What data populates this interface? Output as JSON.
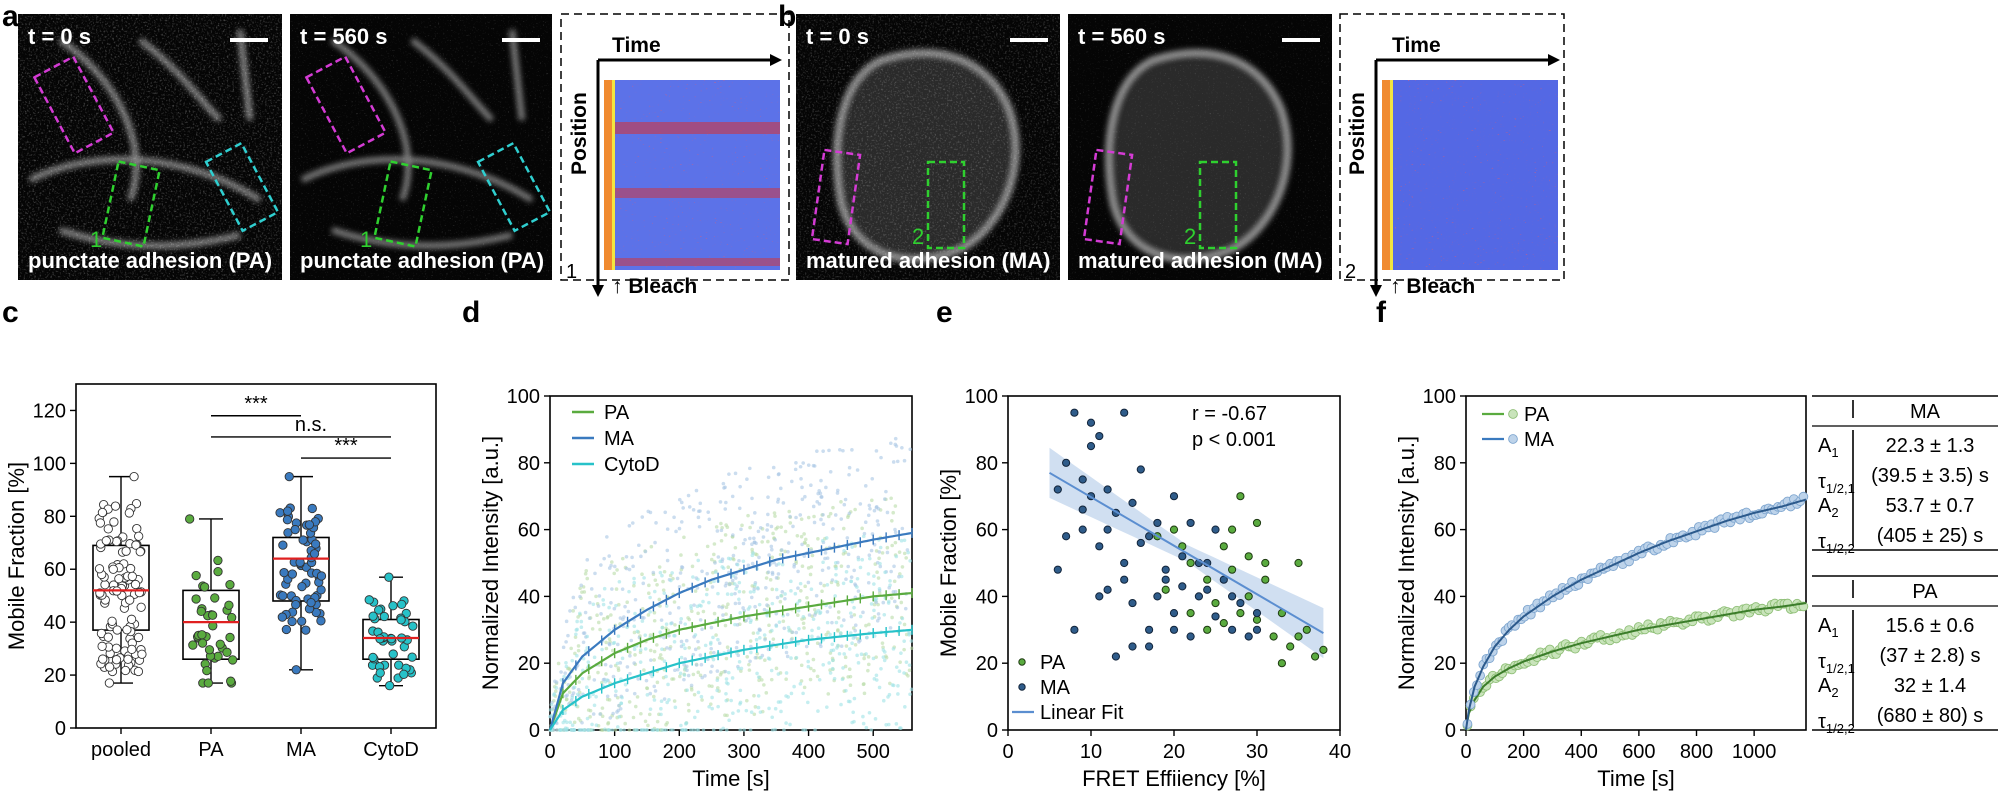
{
  "panels": {
    "a": {
      "label": "a",
      "images": [
        {
          "time": "t = 0 s",
          "caption": "punctate adhesion (PA)",
          "roi": "1"
        },
        {
          "time": "t = 560 s",
          "caption": "punctate adhesion (PA)",
          "roi": "1"
        }
      ],
      "kymo": {
        "time_label": "Time",
        "position_label": "Position",
        "bleach_label": "Bleach",
        "index": "1"
      }
    },
    "b": {
      "label": "b",
      "images": [
        {
          "time": "t = 0 s",
          "caption": "matured adhesion (MA)",
          "roi": "2"
        },
        {
          "time": "t = 560 s",
          "caption": "matured adhesion (MA)",
          "roi": "2"
        }
      ],
      "kymo": {
        "time_label": "Time",
        "position_label": "Position",
        "bleach_label": "Bleach",
        "index": "2"
      }
    },
    "c": {
      "label": "c"
    },
    "d": {
      "label": "d"
    },
    "e": {
      "label": "e"
    },
    "f": {
      "label": "f"
    }
  },
  "colors": {
    "pa": "#5aab3f",
    "ma": "#3a7abf",
    "cytod": "#27c2c9",
    "median": "#e02020",
    "magenta_roi": "#d43bd4",
    "green_roi": "#2fd02f",
    "cyan_roi": "#2fcfd0"
  },
  "chart_data": [
    {
      "id": "c",
      "type": "box",
      "categories": [
        "pooled",
        "PA",
        "MA",
        "CytoD"
      ],
      "ylabel": "Mobile Fraction [%]",
      "ylim": [
        0,
        130
      ],
      "yticks": [
        0,
        20,
        40,
        60,
        80,
        100,
        120
      ],
      "boxes": [
        {
          "name": "pooled",
          "min": 17,
          "q1": 37,
          "median": 52,
          "q3": 69,
          "max": 95
        },
        {
          "name": "PA",
          "min": 17,
          "q1": 26,
          "median": 40,
          "q3": 52,
          "max": 79
        },
        {
          "name": "MA",
          "min": 22,
          "q1": 48,
          "median": 64,
          "q3": 72,
          "max": 95
        },
        {
          "name": "CytoD",
          "min": 16,
          "q1": 26,
          "median": 34,
          "q3": 41,
          "max": 57
        }
      ],
      "significance": [
        {
          "from": "PA",
          "to": "MA",
          "label": "***",
          "y": 118
        },
        {
          "from": "PA",
          "to": "CytoD",
          "label": "n.s.",
          "y": 110
        },
        {
          "from": "MA",
          "to": "CytoD",
          "label": "***",
          "y": 102
        }
      ]
    },
    {
      "id": "d",
      "type": "line",
      "xlabel": "Time [s]",
      "ylabel": "Normalized Intensity [a.u.]",
      "xlim": [
        0,
        560
      ],
      "ylim": [
        0,
        100
      ],
      "xticks": [
        0,
        100,
        200,
        300,
        400,
        500
      ],
      "yticks": [
        0,
        20,
        40,
        60,
        80,
        100
      ],
      "series": [
        {
          "name": "PA",
          "x": [
            0,
            20,
            50,
            100,
            150,
            200,
            250,
            300,
            350,
            400,
            450,
            500,
            560
          ],
          "y": [
            0,
            11,
            17,
            23,
            27,
            30,
            32,
            34,
            35.5,
            37,
            38.5,
            40,
            41
          ]
        },
        {
          "name": "MA",
          "x": [
            0,
            20,
            50,
            100,
            150,
            200,
            250,
            300,
            350,
            400,
            450,
            500,
            560
          ],
          "y": [
            0,
            14,
            22,
            30,
            36,
            41,
            45,
            48,
            51,
            53,
            55,
            57,
            59
          ]
        },
        {
          "name": "CytoD",
          "x": [
            0,
            20,
            50,
            100,
            150,
            200,
            250,
            300,
            350,
            400,
            450,
            500,
            560
          ],
          "y": [
            0,
            6,
            10,
            14,
            17,
            20,
            22,
            24,
            25.5,
            27,
            28,
            29,
            30
          ]
        }
      ]
    },
    {
      "id": "e",
      "type": "scatter",
      "xlabel": "FRET Effiiency [%]",
      "ylabel": "Mobile Fraction [%]",
      "xlim": [
        0,
        40
      ],
      "ylim": [
        0,
        100
      ],
      "xticks": [
        0,
        10,
        20,
        30,
        40
      ],
      "yticks": [
        0,
        20,
        40,
        60,
        80,
        100
      ],
      "annotations": {
        "r": "r  = -0.67",
        "p": "p <  0.001"
      },
      "fit": {
        "x": [
          5,
          38
        ],
        "y": [
          77,
          29
        ]
      },
      "series": [
        {
          "name": "PA",
          "points": [
            [
              20,
              60
            ],
            [
              22,
              50
            ],
            [
              24,
              45
            ],
            [
              25,
              38
            ],
            [
              26,
              55
            ],
            [
              27,
              60
            ],
            [
              28,
              70
            ],
            [
              29,
              40
            ],
            [
              30,
              33
            ],
            [
              31,
              45
            ],
            [
              32,
              28
            ],
            [
              33,
              35
            ],
            [
              34,
              25
            ],
            [
              35,
              50
            ],
            [
              36,
              30
            ],
            [
              37,
              22
            ],
            [
              38,
              24
            ],
            [
              24,
              30
            ],
            [
              27,
              48
            ],
            [
              29,
              52
            ],
            [
              30,
              62
            ],
            [
              22,
              35
            ],
            [
              19,
              42
            ],
            [
              33,
              20
            ],
            [
              35,
              28
            ],
            [
              21,
              55
            ],
            [
              26,
              32
            ],
            [
              31,
              50
            ],
            [
              28,
              35
            ],
            [
              18,
              58
            ]
          ]
        },
        {
          "name": "MA",
          "points": [
            [
              6,
              48
            ],
            [
              7,
              80
            ],
            [
              8,
              95
            ],
            [
              9,
              75
            ],
            [
              9,
              60
            ],
            [
              10,
              70
            ],
            [
              11,
              55
            ],
            [
              11,
              88
            ],
            [
              12,
              72
            ],
            [
              12,
              42
            ],
            [
              13,
              65
            ],
            [
              14,
              95
            ],
            [
              14,
              50
            ],
            [
              15,
              68
            ],
            [
              15,
              38
            ],
            [
              16,
              78
            ],
            [
              17,
              58
            ],
            [
              17,
              30
            ],
            [
              18,
              62
            ],
            [
              19,
              45
            ],
            [
              20,
              70
            ],
            [
              20,
              35
            ],
            [
              21,
              52
            ],
            [
              22,
              28
            ],
            [
              23,
              40
            ],
            [
              24,
              50
            ],
            [
              25,
              34
            ],
            [
              26,
              45
            ],
            [
              27,
              30
            ],
            [
              28,
              38
            ],
            [
              29,
              28
            ],
            [
              30,
              35
            ],
            [
              8,
              30
            ],
            [
              10,
              85
            ],
            [
              13,
              22
            ],
            [
              15,
              25
            ],
            [
              19,
              48
            ],
            [
              22,
              62
            ],
            [
              25,
              60
            ],
            [
              16,
              56
            ],
            [
              18,
              40
            ],
            [
              21,
              43
            ],
            [
              12,
              60
            ],
            [
              9,
              66
            ],
            [
              14,
              45
            ],
            [
              11,
              40
            ],
            [
              23,
              50
            ],
            [
              6,
              72
            ],
            [
              7,
              58
            ],
            [
              10,
              92
            ],
            [
              17,
              25
            ],
            [
              20,
              30
            ],
            [
              24,
              42
            ],
            [
              27,
              40
            ],
            [
              30,
              30
            ]
          ]
        }
      ]
    },
    {
      "id": "f",
      "type": "line",
      "xlabel": "Time [s]",
      "ylabel": "Normalized Intensity [a.u.]",
      "xlim": [
        0,
        1180
      ],
      "ylim": [
        0,
        100
      ],
      "xticks": [
        0,
        200,
        400,
        600,
        800,
        1000
      ],
      "yticks": [
        0,
        20,
        40,
        60,
        80,
        100
      ],
      "series": [
        {
          "name": "PA",
          "x": [
            0,
            10,
            30,
            60,
            100,
            150,
            200,
            300,
            400,
            500,
            600,
            700,
            800,
            900,
            1000,
            1100,
            1180
          ],
          "y": [
            0,
            5,
            9,
            13,
            16,
            18.5,
            20.5,
            23.5,
            26,
            28,
            30,
            31.5,
            33,
            34.5,
            36,
            37,
            38
          ]
        },
        {
          "name": "MA",
          "x": [
            0,
            10,
            30,
            60,
            100,
            150,
            200,
            300,
            400,
            500,
            600,
            700,
            800,
            900,
            1000,
            1100,
            1180
          ],
          "y": [
            0,
            6,
            13,
            19,
            25,
            30,
            34,
            40,
            45,
            49,
            53,
            56.5,
            59.5,
            62.5,
            65,
            67,
            69
          ]
        }
      ]
    }
  ],
  "legends": {
    "d": [
      "PA",
      "MA",
      "CytoD"
    ],
    "e": [
      "PA",
      "MA",
      "Linear Fit"
    ],
    "f": [
      "PA",
      "MA"
    ]
  },
  "fit_tables": [
    {
      "title": "MA",
      "rows": [
        {
          "param": "A",
          "sub": "1",
          "value": "22.3 ± 1.3"
        },
        {
          "param": "τ",
          "sub": "1/2,1",
          "value": "(39.5 ± 3.5) s"
        },
        {
          "param": "A",
          "sub": "2",
          "value": "53.7 ± 0.7"
        },
        {
          "param": "τ",
          "sub": "1/2,2",
          "value": "(405 ± 25) s"
        }
      ]
    },
    {
      "title": "PA",
      "rows": [
        {
          "param": "A",
          "sub": "1",
          "value": "15.6 ± 0.6"
        },
        {
          "param": "τ",
          "sub": "1/2,1",
          "value": "(37 ± 2.8) s"
        },
        {
          "param": "A",
          "sub": "2",
          "value": "32 ± 1.4"
        },
        {
          "param": "τ",
          "sub": "1/2,2",
          "value": "(680 ± 80) s"
        }
      ]
    }
  ]
}
